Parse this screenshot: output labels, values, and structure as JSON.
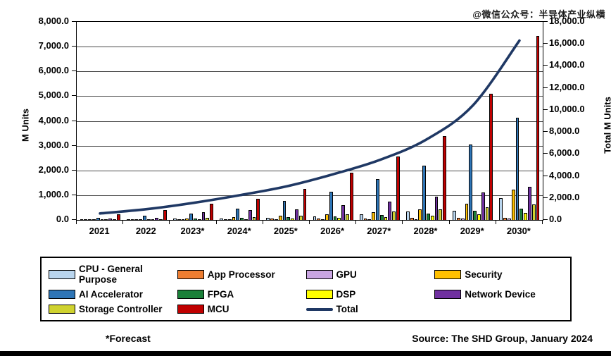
{
  "watermark": "@微信公众号：半导体产业纵横",
  "footer": {
    "forecast_note": "*Forecast",
    "source": "Source: The SHD Group, January 2024"
  },
  "chart_data": {
    "type": "bar",
    "subtype": "grouped-bars-with-line-overlay",
    "categories": [
      "2021",
      "2022",
      "2023*",
      "2024*",
      "2025*",
      "2026*",
      "2027*",
      "2028*",
      "2029*",
      "2030*"
    ],
    "left_axis": {
      "label": "M Units",
      "min": 0,
      "max": 8000,
      "step": 1000,
      "tick_labels": [
        "0.0",
        "1,000.0",
        "2,000.0",
        "3,000.0",
        "4,000.0",
        "5,000.0",
        "6,000.0",
        "7,000.0",
        "8,000.0"
      ]
    },
    "right_axis": {
      "label": "Total M Units",
      "min": 0,
      "max": 18000,
      "step": 2000,
      "tick_labels": [
        "0.0",
        "2,000.0",
        "4,000.0",
        "6,000.0",
        "8,000.0",
        "10,000.0",
        "12,000.0",
        "14,000.0",
        "16,000.0",
        "18,000.0"
      ]
    },
    "grid": "horizontal-only",
    "legend_position": "bottom-box",
    "series": [
      {
        "name": "CPU - General Purpose",
        "color": "#b9d5ee",
        "values": [
          20,
          30,
          45,
          65,
          95,
          150,
          240,
          330,
          380,
          870
        ]
      },
      {
        "name": "App Processor",
        "color": "#ed7d31",
        "values": [
          10,
          15,
          25,
          35,
          45,
          55,
          65,
          75,
          85,
          95
        ]
      },
      {
        "name": "GPU",
        "color": "#c9a5e2",
        "values": [
          5,
          8,
          12,
          18,
          22,
          28,
          35,
          42,
          50,
          60
        ]
      },
      {
        "name": "Security",
        "color": "#ffc000",
        "values": [
          25,
          40,
          70,
          110,
          160,
          230,
          320,
          430,
          650,
          1230
        ]
      },
      {
        "name": "AI Accelerator",
        "color": "#2e75b6",
        "values": [
          100,
          160,
          270,
          450,
          760,
          1130,
          1650,
          2200,
          3050,
          4120
        ]
      },
      {
        "name": "FPGA",
        "color": "#1a8038",
        "values": [
          20,
          35,
          55,
          80,
          110,
          150,
          200,
          260,
          370,
          460
        ]
      },
      {
        "name": "DSP",
        "color": "#ffff00",
        "values": [
          10,
          15,
          25,
          40,
          60,
          90,
          120,
          160,
          220,
          280
        ]
      },
      {
        "name": "Network Device",
        "color": "#7030a0",
        "values": [
          60,
          95,
          310,
          390,
          430,
          600,
          730,
          930,
          1120,
          1330
        ]
      },
      {
        "name": "Storage Controller",
        "color": "#cfd22f",
        "values": [
          20,
          35,
          90,
          120,
          170,
          230,
          350,
          420,
          510,
          640
        ]
      },
      {
        "name": "MCU",
        "color": "#c00000",
        "values": [
          230,
          400,
          660,
          850,
          1260,
          1900,
          2570,
          3400,
          5100,
          7430
        ]
      }
    ],
    "total_line": {
      "name": "Total",
      "color": "#1f3864",
      "axis": "right",
      "values": [
        590,
        980,
        1550,
        2250,
        3050,
        4150,
        5450,
        7300,
        10400,
        16300
      ]
    },
    "legend_items": [
      {
        "label": "CPU - General Purpose",
        "color": "#b9d5ee",
        "type": "box"
      },
      {
        "label": "App Processor",
        "color": "#ed7d31",
        "type": "box"
      },
      {
        "label": "GPU",
        "color": "#c9a5e2",
        "type": "box"
      },
      {
        "label": "Security",
        "color": "#ffc000",
        "type": "box"
      },
      {
        "label": "AI Accelerator",
        "color": "#2e75b6",
        "type": "box"
      },
      {
        "label": "FPGA",
        "color": "#1a8038",
        "type": "box"
      },
      {
        "label": "DSP",
        "color": "#ffff00",
        "type": "box"
      },
      {
        "label": "Network Device",
        "color": "#7030a0",
        "type": "box"
      },
      {
        "label": "Storage Controller",
        "color": "#cfd22f",
        "type": "box"
      },
      {
        "label": "MCU",
        "color": "#c00000",
        "type": "box"
      },
      {
        "label": "Total",
        "color": "#1f3864",
        "type": "line"
      }
    ]
  }
}
